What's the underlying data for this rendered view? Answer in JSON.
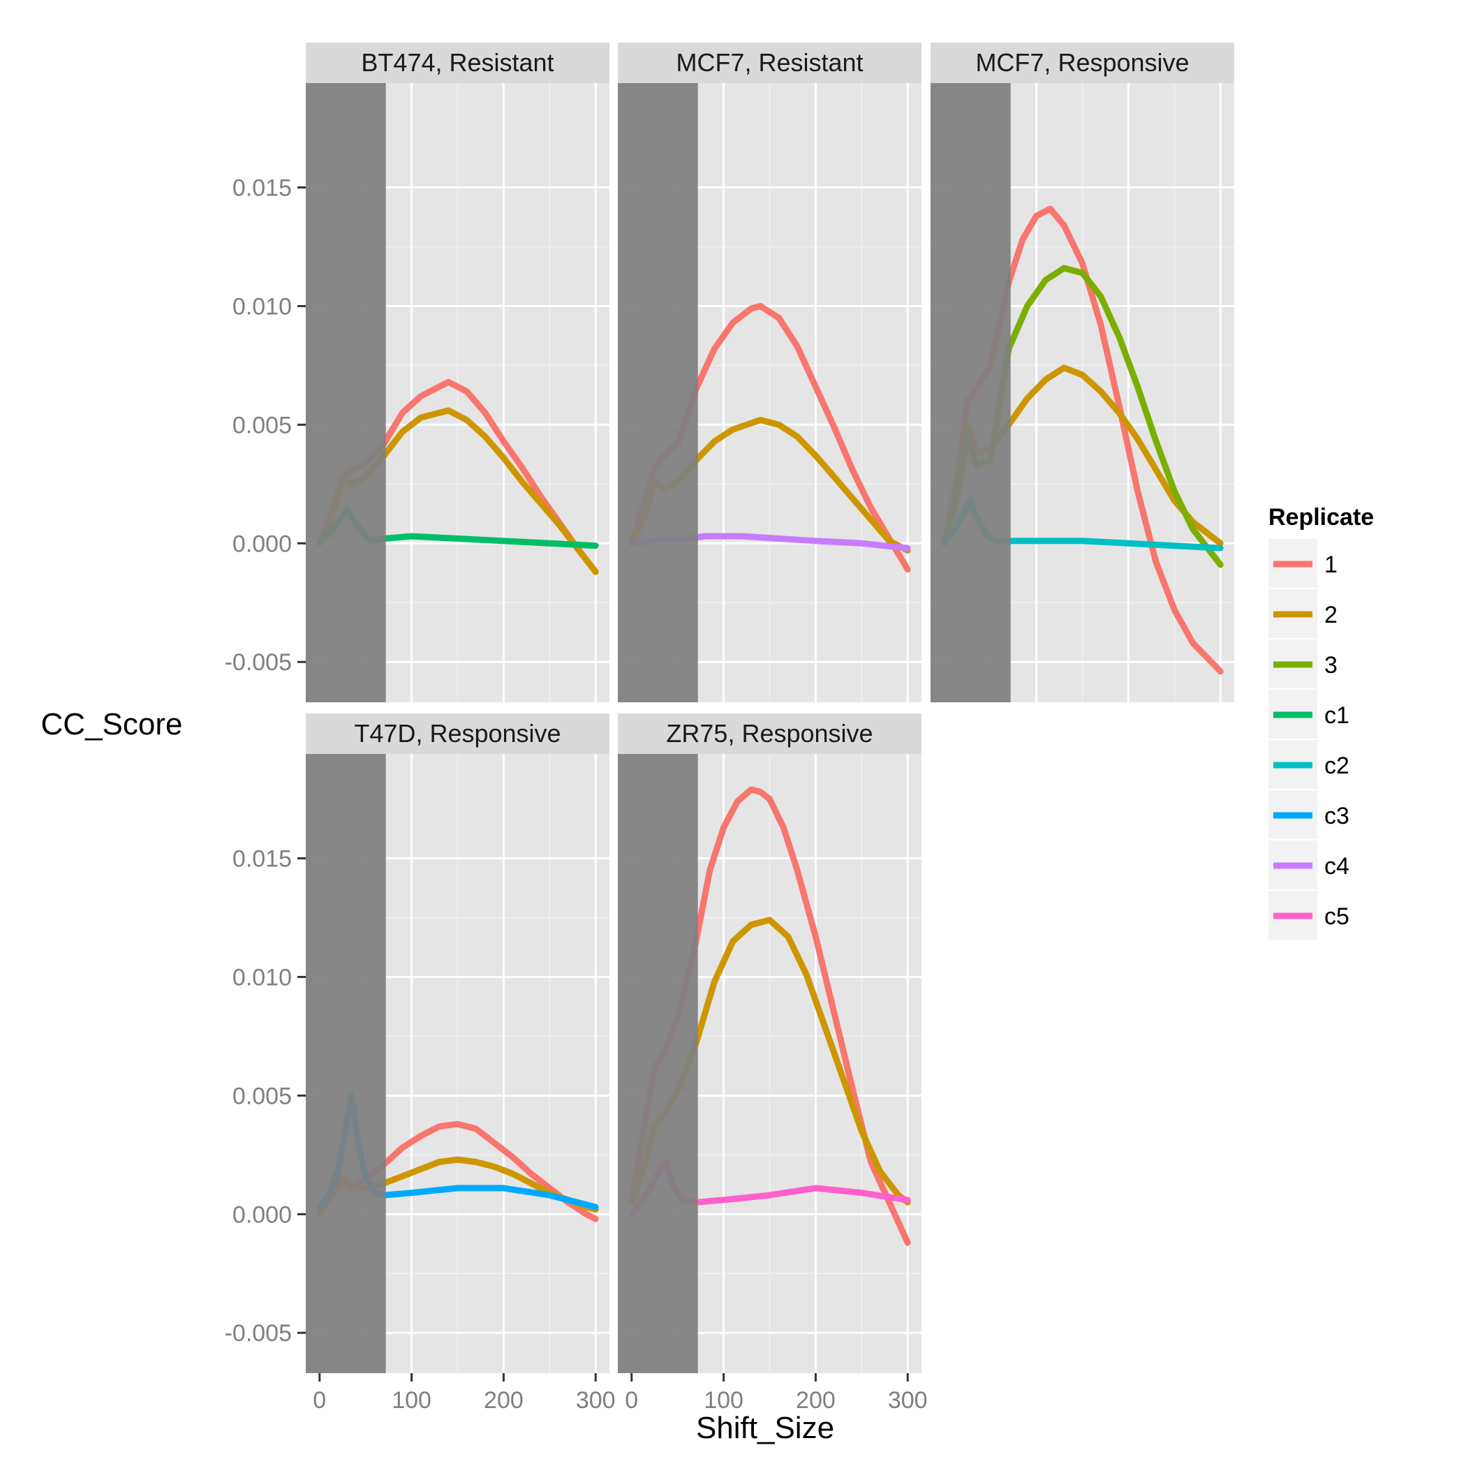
{
  "chart_data": {
    "type": "line",
    "xlabel": "Shift_Size",
    "ylabel": "CC_Score",
    "xlim": [
      -15,
      315
    ],
    "ylim": [
      -0.0067,
      0.0194
    ],
    "x_ticks": [
      0,
      100,
      200,
      300
    ],
    "x_tick_labels": [
      "0",
      "100",
      "200",
      "300"
    ],
    "y_ticks": [
      -0.005,
      0.0,
      0.005,
      0.01,
      0.015
    ],
    "y_tick_labels": [
      "-0.005",
      "0.000",
      "0.005",
      "0.010",
      "0.015"
    ],
    "grid": true,
    "shaded_region": {
      "x": [
        -15,
        72
      ],
      "color": "#7f7f7f"
    },
    "legend": {
      "title": "Replicate",
      "placement": "right",
      "entries": [
        {
          "label": "1",
          "color": "#F8766D"
        },
        {
          "label": "2",
          "color": "#CD9600"
        },
        {
          "label": "3",
          "color": "#7CAE00"
        },
        {
          "label": "c1",
          "color": "#00BE67"
        },
        {
          "label": "c2",
          "color": "#00BFC4"
        },
        {
          "label": "c3",
          "color": "#00A9FF"
        },
        {
          "label": "c4",
          "color": "#C77CFF"
        },
        {
          "label": "c5",
          "color": "#FF61CC"
        }
      ]
    },
    "panels": [
      {
        "title": "BT474, Resistant",
        "series": [
          {
            "name": "1",
            "color": "#F8766D",
            "x": [
              0,
              15,
              25,
              35,
              50,
              70,
              90,
              110,
              140,
              160,
              180,
              200,
              220,
              240,
              260,
              280,
              300
            ],
            "y": [
              0.0,
              0.0015,
              0.0028,
              0.0031,
              0.0034,
              0.0042,
              0.0055,
              0.0062,
              0.0068,
              0.0064,
              0.0055,
              0.0043,
              0.0032,
              0.002,
              0.0009,
              -0.0002,
              -0.0012
            ]
          },
          {
            "name": "2",
            "color": "#CD9600",
            "x": [
              0,
              15,
              25,
              35,
              50,
              70,
              90,
              110,
              140,
              160,
              180,
              200,
              220,
              240,
              260,
              280,
              300
            ],
            "y": [
              0.0,
              0.0013,
              0.0027,
              0.0025,
              0.0028,
              0.0037,
              0.0047,
              0.0053,
              0.0056,
              0.0052,
              0.0045,
              0.0036,
              0.0026,
              0.0017,
              0.0008,
              -0.0002,
              -0.0012
            ]
          },
          {
            "name": "c1",
            "color": "#00BE67",
            "x": [
              0,
              10,
              20,
              30,
              40,
              55,
              70,
              100,
              150,
              200,
              250,
              300
            ],
            "y": [
              0.0001,
              0.0004,
              0.0009,
              0.0014,
              0.0008,
              0.0001,
              0.0002,
              0.0003,
              0.0002,
              0.0001,
              0.0,
              -0.0001
            ]
          }
        ]
      },
      {
        "title": "MCF7, Resistant",
        "series": [
          {
            "name": "1",
            "color": "#F8766D",
            "x": [
              0,
              15,
              25,
              35,
              50,
              70,
              90,
              110,
              130,
              140,
              160,
              180,
              200,
              220,
              240,
              260,
              280,
              300
            ],
            "y": [
              0.0,
              0.0018,
              0.0032,
              0.0037,
              0.0042,
              0.0065,
              0.0082,
              0.0093,
              0.0099,
              0.01,
              0.0095,
              0.0083,
              0.0066,
              0.0049,
              0.0031,
              0.0015,
              0.0002,
              -0.0011
            ]
          },
          {
            "name": "2",
            "color": "#CD9600",
            "x": [
              0,
              15,
              25,
              35,
              50,
              70,
              90,
              110,
              140,
              160,
              180,
              200,
              220,
              240,
              260,
              280,
              300
            ],
            "y": [
              0.0,
              0.0012,
              0.0026,
              0.0023,
              0.0026,
              0.0035,
              0.0043,
              0.0048,
              0.0052,
              0.005,
              0.0045,
              0.0037,
              0.0028,
              0.0019,
              0.001,
              0.0001,
              -0.0003
            ]
          },
          {
            "name": "c4",
            "color": "#C77CFF",
            "x": [
              0,
              20,
              40,
              60,
              80,
              120,
              160,
              200,
              250,
              300
            ],
            "y": [
              0.0,
              0.0001,
              0.0002,
              0.0002,
              0.0003,
              0.0003,
              0.0002,
              0.0001,
              0.0,
              -0.0002
            ]
          }
        ]
      },
      {
        "title": "MCF7, Responsive",
        "series": [
          {
            "name": "1",
            "color": "#F8766D",
            "x": [
              0,
              15,
              25,
              35,
              50,
              70,
              85,
              100,
              115,
              130,
              150,
              170,
              190,
              210,
              230,
              250,
              270,
              285,
              300
            ],
            "y": [
              0.0,
              0.003,
              0.006,
              0.0065,
              0.0075,
              0.011,
              0.0128,
              0.0138,
              0.0141,
              0.0134,
              0.0118,
              0.0092,
              0.0058,
              0.0022,
              -0.0008,
              -0.0028,
              -0.0042,
              -0.0048,
              -0.0054
            ]
          },
          {
            "name": "2",
            "color": "#CD9600",
            "x": [
              0,
              15,
              25,
              35,
              50,
              70,
              90,
              110,
              130,
              150,
              170,
              190,
              210,
              230,
              250,
              270,
              290,
              300
            ],
            "y": [
              0.0,
              0.0025,
              0.005,
              0.0038,
              0.004,
              0.005,
              0.0061,
              0.0069,
              0.0074,
              0.0071,
              0.0064,
              0.0055,
              0.0044,
              0.0031,
              0.0018,
              0.0009,
              0.0003,
              0.0
            ]
          },
          {
            "name": "3",
            "color": "#7CAE00",
            "x": [
              0,
              15,
              25,
              35,
              50,
              70,
              90,
              110,
              130,
              150,
              170,
              190,
              210,
              230,
              250,
              270,
              290,
              300
            ],
            "y": [
              0.0,
              0.0022,
              0.0045,
              0.0033,
              0.0035,
              0.0082,
              0.01,
              0.0111,
              0.0116,
              0.0114,
              0.0104,
              0.0087,
              0.0066,
              0.0043,
              0.0022,
              0.0006,
              -0.0004,
              -0.0009
            ]
          },
          {
            "name": "c2",
            "color": "#00BFC4",
            "x": [
              0,
              10,
              20,
              28,
              35,
              45,
              55,
              70,
              100,
              150,
              200,
              250,
              300
            ],
            "y": [
              0.0001,
              0.0005,
              0.0012,
              0.0018,
              0.0011,
              0.0004,
              0.0001,
              0.0001,
              0.0001,
              0.0001,
              0.0,
              -0.0001,
              -0.0002
            ]
          }
        ]
      },
      {
        "title": "T47D, Responsive",
        "series": [
          {
            "name": "1",
            "color": "#F8766D",
            "x": [
              0,
              15,
              25,
              35,
              50,
              70,
              90,
              110,
              130,
              150,
              170,
              190,
              210,
              230,
              250,
              270,
              290,
              300
            ],
            "y": [
              0.0,
              0.0009,
              0.0014,
              0.0011,
              0.0015,
              0.0021,
              0.0028,
              0.0033,
              0.0037,
              0.0038,
              0.0036,
              0.003,
              0.0024,
              0.0017,
              0.0011,
              0.0005,
              0.0,
              -0.0002
            ]
          },
          {
            "name": "2",
            "color": "#CD9600",
            "x": [
              0,
              15,
              25,
              35,
              50,
              70,
              90,
              110,
              130,
              150,
              170,
              190,
              210,
              230,
              250,
              270,
              290,
              300
            ],
            "y": [
              0.0,
              0.001,
              0.0016,
              0.0011,
              0.0011,
              0.0013,
              0.0016,
              0.0019,
              0.0022,
              0.0023,
              0.0022,
              0.002,
              0.0017,
              0.0013,
              0.0009,
              0.0006,
              0.0003,
              0.0002
            ]
          },
          {
            "name": "c3",
            "color": "#00A9FF",
            "x": [
              0,
              10,
              20,
              28,
              35,
              42,
              50,
              60,
              70,
              100,
              150,
              200,
              250,
              280,
              300
            ],
            "y": [
              0.0003,
              0.0008,
              0.0018,
              0.0035,
              0.005,
              0.003,
              0.0016,
              0.0009,
              0.0008,
              0.0009,
              0.0011,
              0.0011,
              0.0008,
              0.0005,
              0.0003
            ]
          }
        ]
      },
      {
        "title": "ZR75, Responsive",
        "series": [
          {
            "name": "1",
            "color": "#F8766D",
            "x": [
              0,
              15,
              25,
              35,
              50,
              70,
              85,
              100,
              115,
              130,
              140,
              150,
              165,
              180,
              200,
              220,
              240,
              260,
              280,
              300
            ],
            "y": [
              0.0005,
              0.004,
              0.0062,
              0.0068,
              0.0083,
              0.0115,
              0.0145,
              0.0163,
              0.0174,
              0.0179,
              0.0178,
              0.0175,
              0.0163,
              0.0145,
              0.0117,
              0.0085,
              0.0053,
              0.0022,
              0.0005,
              -0.0012
            ]
          },
          {
            "name": "2",
            "color": "#CD9600",
            "x": [
              0,
              15,
              25,
              35,
              50,
              70,
              90,
              110,
              130,
              150,
              170,
              190,
              210,
              230,
              250,
              270,
              290,
              300
            ],
            "y": [
              0.0005,
              0.0022,
              0.0037,
              0.0042,
              0.0052,
              0.0072,
              0.0098,
              0.0115,
              0.0122,
              0.0124,
              0.0117,
              0.0101,
              0.0079,
              0.0057,
              0.0035,
              0.0018,
              0.0008,
              0.0005
            ]
          },
          {
            "name": "c5",
            "color": "#FF61CC",
            "x": [
              0,
              10,
              20,
              30,
              38,
              45,
              55,
              70,
              100,
              150,
              200,
              250,
              300
            ],
            "y": [
              0.0,
              0.0005,
              0.0011,
              0.0018,
              0.0022,
              0.0012,
              0.0006,
              0.0005,
              0.0006,
              0.0008,
              0.0011,
              0.0009,
              0.0006
            ]
          }
        ]
      }
    ]
  }
}
